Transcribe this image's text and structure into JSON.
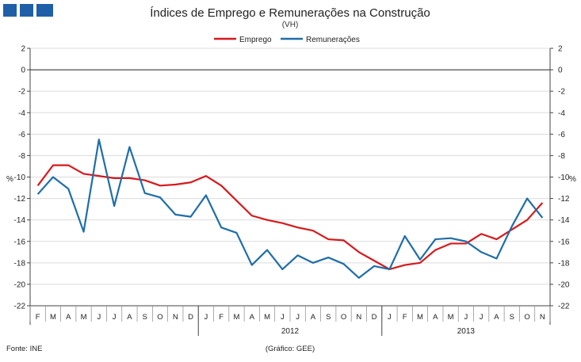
{
  "chart_data": {
    "type": "line",
    "title": "Índices de Emprego e Remunerações na Construção",
    "subtitle": "(VH)",
    "ylabel_left": "%",
    "ylabel_right": "%",
    "ylim": [
      -22,
      2
    ],
    "yticks": [
      2,
      0,
      -2,
      -4,
      -6,
      -8,
      -10,
      -12,
      -14,
      -16,
      -18,
      -20,
      -22
    ],
    "categories": [
      "F",
      "M",
      "A",
      "M",
      "J",
      "J",
      "A",
      "S",
      "O",
      "N",
      "D",
      "J",
      "F",
      "M",
      "A",
      "M",
      "J",
      "J",
      "A",
      "S",
      "O",
      "N",
      "D",
      "J",
      "F",
      "M",
      "A",
      "M",
      "J",
      "J",
      "A",
      "S",
      "O",
      "N"
    ],
    "year_groups": [
      {
        "label": "2012",
        "start": 11,
        "end": 22
      },
      {
        "label": "2013",
        "start": 23,
        "end": 33
      }
    ],
    "series": [
      {
        "name": "Emprego",
        "color": "#d7191c",
        "values": [
          -10.8,
          -8.9,
          -8.9,
          -9.7,
          -9.9,
          -10.1,
          -10.1,
          -10.3,
          -10.8,
          -10.7,
          -10.5,
          -9.9,
          -10.8,
          -12.2,
          -13.6,
          -14.0,
          -14.3,
          -14.7,
          -15.0,
          -15.8,
          -15.9,
          -17.0,
          -17.8,
          -18.6,
          -18.2,
          -18.0,
          -16.8,
          -16.2,
          -16.2,
          -15.3,
          -15.8,
          -14.9,
          -14.0,
          -12.4
        ]
      },
      {
        "name": "Remunerações",
        "color": "#1f6ea8",
        "values": [
          -11.6,
          -10.0,
          -11.1,
          -15.1,
          -6.5,
          -12.7,
          -7.2,
          -11.5,
          -11.9,
          -13.5,
          -13.7,
          -11.7,
          -14.7,
          -15.2,
          -18.2,
          -16.8,
          -18.6,
          -17.3,
          -18.0,
          -17.5,
          -18.1,
          -19.4,
          -18.3,
          -18.6,
          -15.5,
          -17.7,
          -15.8,
          -15.7,
          -16.0,
          -17.0,
          -17.6,
          -14.6,
          -12.0,
          -13.8
        ]
      }
    ],
    "legend_position": "top-center"
  },
  "footer": {
    "source": "Fonte: INE",
    "credit": "(Gráfico: GEE)"
  },
  "header": {
    "logo_icon": "gee-blue-blocks-logo",
    "logo_color": "#1f5fa8"
  }
}
